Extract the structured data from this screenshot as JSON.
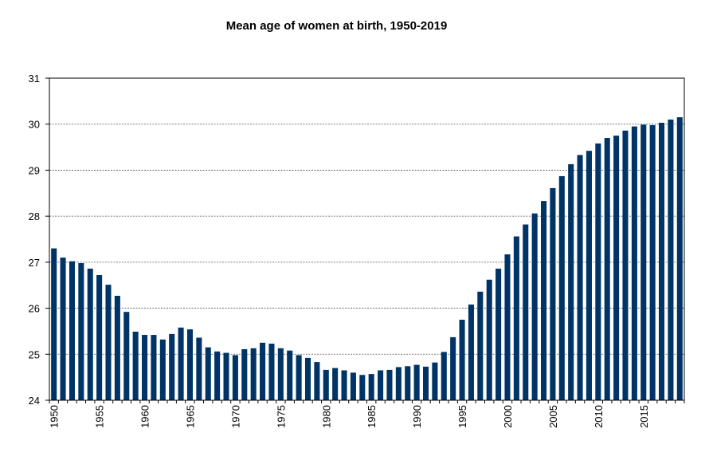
{
  "chart_data": {
    "type": "bar",
    "title": "Mean age of women at birth, 1950-2019",
    "xlabel": "",
    "ylabel": "",
    "ylim": [
      24,
      31
    ],
    "yticks": [
      "24",
      "25",
      "26",
      "27",
      "28",
      "29",
      "30",
      "31"
    ],
    "xtick_labels": [
      "1950",
      "1955",
      "1960",
      "1965",
      "1970",
      "1975",
      "1980",
      "1985",
      "1990",
      "1995",
      "2000",
      "2005",
      "2010",
      "2015"
    ],
    "grid": true,
    "legend": "none",
    "bar_color": "#003466",
    "categories": [
      1950,
      1951,
      1952,
      1953,
      1954,
      1955,
      1956,
      1957,
      1958,
      1959,
      1960,
      1961,
      1962,
      1963,
      1964,
      1965,
      1966,
      1967,
      1968,
      1969,
      1970,
      1971,
      1972,
      1973,
      1974,
      1975,
      1976,
      1977,
      1978,
      1979,
      1980,
      1981,
      1982,
      1983,
      1984,
      1985,
      1986,
      1987,
      1988,
      1989,
      1990,
      1991,
      1992,
      1993,
      1994,
      1995,
      1996,
      1997,
      1998,
      1999,
      2000,
      2001,
      2002,
      2003,
      2004,
      2005,
      2006,
      2007,
      2008,
      2009,
      2010,
      2011,
      2012,
      2013,
      2014,
      2015,
      2016,
      2017,
      2018,
      2019
    ],
    "values": [
      27.3,
      27.1,
      27.02,
      26.98,
      26.86,
      26.72,
      26.51,
      26.27,
      25.92,
      25.49,
      25.42,
      25.42,
      25.32,
      25.44,
      25.58,
      25.54,
      25.36,
      25.15,
      25.06,
      25.03,
      24.98,
      25.11,
      25.13,
      25.25,
      25.23,
      25.13,
      25.08,
      24.98,
      24.92,
      24.83,
      24.66,
      24.7,
      24.65,
      24.6,
      24.55,
      24.57,
      24.65,
      24.66,
      24.72,
      24.74,
      24.77,
      24.73,
      24.82,
      25.05,
      25.37,
      25.75,
      26.08,
      26.36,
      26.62,
      26.86,
      27.17,
      27.56,
      27.82,
      28.06,
      28.33,
      28.61,
      28.87,
      29.13,
      29.33,
      29.42,
      29.58,
      29.7,
      29.75,
      29.86,
      29.95,
      29.99,
      29.98,
      30.03,
      30.1,
      30.15
    ]
  }
}
